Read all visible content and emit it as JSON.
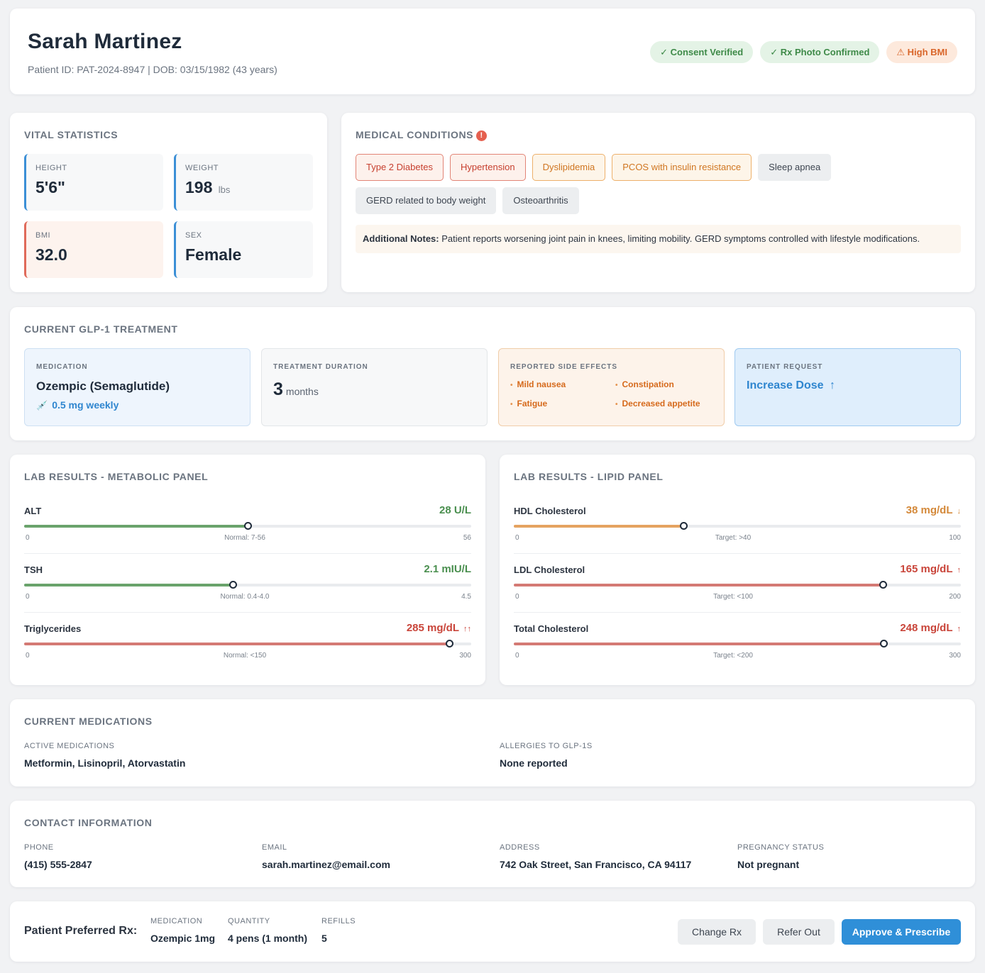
{
  "patient": {
    "name": "Sarah Martinez",
    "sub": "Patient ID: PAT-2024-8947 | DOB: 03/15/1982 (43 years)",
    "badges": [
      {
        "label": "✓ Consent Verified",
        "kind": "ok"
      },
      {
        "label": "✓ Rx Photo Confirmed",
        "kind": "ok"
      },
      {
        "label": "⚠ High BMI",
        "kind": "warn"
      }
    ]
  },
  "vitals": {
    "title": "VITAL STATISTICS",
    "height": {
      "label": "HEIGHT",
      "value": "5'6\""
    },
    "weight": {
      "label": "WEIGHT",
      "value": "198",
      "unit": "lbs"
    },
    "bmi": {
      "label": "BMI",
      "value": "32.0"
    },
    "sex": {
      "label": "SEX",
      "value": "Female"
    }
  },
  "conditions": {
    "title": "MEDICAL CONDITIONS",
    "alert_glyph": "!",
    "tags": [
      {
        "label": "Type 2 Diabetes",
        "severity": "red"
      },
      {
        "label": "Hypertension",
        "severity": "red"
      },
      {
        "label": "Dyslipidemia",
        "severity": "orange"
      },
      {
        "label": "PCOS with insulin resistance",
        "severity": "orange"
      },
      {
        "label": "Sleep apnea",
        "severity": "gray"
      },
      {
        "label": "GERD related to body weight",
        "severity": "gray"
      },
      {
        "label": "Osteoarthritis",
        "severity": "gray"
      }
    ],
    "notes_label": "Additional Notes:",
    "notes_text": "Patient reports worsening joint pain in knees, limiting mobility. GERD symptoms controlled with lifestyle modifications."
  },
  "treatment": {
    "title": "CURRENT GLP-1 TREATMENT",
    "medication": {
      "label": "MEDICATION",
      "name": "Ozempic (Semaglutide)",
      "dose": "0.5 mg weekly",
      "dose_icon": "💉"
    },
    "duration": {
      "label": "TREATMENT DURATION",
      "value": "3",
      "unit": "months"
    },
    "side_effects": {
      "label": "REPORTED SIDE EFFECTS",
      "items": [
        "Mild nausea",
        "Constipation",
        "Fatigue",
        "Decreased appetite"
      ]
    },
    "request": {
      "label": "PATIENT REQUEST",
      "value": "Increase Dose",
      "arrow": "↑"
    }
  },
  "labs": {
    "metabolic": {
      "title": "LAB RESULTS - METABOLIC PANEL",
      "rows": [
        {
          "name": "ALT",
          "value": "28 U/L",
          "num": 28,
          "min": "0",
          "max": "56",
          "maxn": 56,
          "ref": "Normal: 7-56",
          "status": "normal",
          "arrow": ""
        },
        {
          "name": "TSH",
          "value": "2.1 mIU/L",
          "num": 2.1,
          "min": "0",
          "max": "4.5",
          "maxn": 4.5,
          "ref": "Normal: 0.4-4.0",
          "status": "normal",
          "arrow": ""
        },
        {
          "name": "Triglycerides",
          "value": "285 mg/dL",
          "num": 285,
          "min": "0",
          "max": "300",
          "maxn": 300,
          "ref": "Normal: <150",
          "status": "high",
          "arrow": "↑↑"
        }
      ]
    },
    "lipid": {
      "title": "LAB RESULTS - LIPID PANEL",
      "rows": [
        {
          "name": "HDL Cholesterol",
          "value": "38 mg/dL",
          "num": 38,
          "min": "0",
          "max": "100",
          "maxn": 100,
          "ref": "Target: >40",
          "status": "low",
          "arrow": "↓"
        },
        {
          "name": "LDL Cholesterol",
          "value": "165 mg/dL",
          "num": 165,
          "min": "0",
          "max": "200",
          "maxn": 200,
          "ref": "Target: <100",
          "status": "high",
          "arrow": "↑"
        },
        {
          "name": "Total Cholesterol",
          "value": "248 mg/dL",
          "num": 248,
          "min": "0",
          "max": "300",
          "maxn": 300,
          "ref": "Target: <200",
          "status": "high",
          "arrow": "↑"
        }
      ]
    },
    "colors": {
      "normal": "#4a8f4f",
      "low": "#d4893a",
      "high": "#c9453a"
    },
    "fill_colors": {
      "normal": "#6aa36c",
      "low": "#e5a360",
      "high": "#d47a74"
    }
  },
  "meds": {
    "title": "CURRENT MEDICATIONS",
    "active_label": "ACTIVE MEDICATIONS",
    "active_value": "Metformin, Lisinopril, Atorvastatin",
    "allergies_label": "ALLERGIES TO GLP-1S",
    "allergies_value": "None reported"
  },
  "contact": {
    "title": "CONTACT INFORMATION",
    "phone_label": "PHONE",
    "phone": "(415) 555-2847",
    "email_label": "EMAIL",
    "email": "sarah.martinez@email.com",
    "address_label": "ADDRESS",
    "address": "742 Oak Street, San Francisco, CA 94117",
    "pregnancy_label": "PREGNANCY STATUS",
    "pregnancy": "Not pregnant"
  },
  "footer": {
    "title": "Patient Preferred Rx:",
    "medication_label": "MEDICATION",
    "medication": "Ozempic 1mg",
    "quantity_label": "QUANTITY",
    "quantity": "4 pens (1 month)",
    "refills_label": "REFILLS",
    "refills": "5",
    "change_label": "Change Rx",
    "refer_label": "Refer Out",
    "approve_label": "Approve & Prescribe"
  }
}
